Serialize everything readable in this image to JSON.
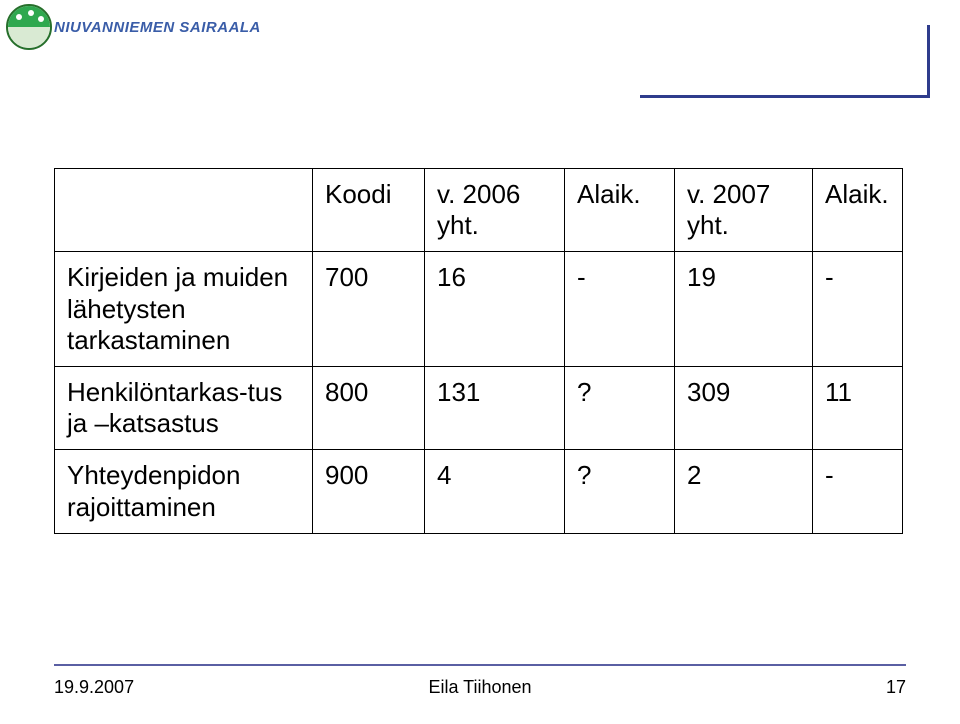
{
  "brand": {
    "name": "NIUVANNIEMEN SAIRAALA"
  },
  "table": {
    "headers": {
      "label": "",
      "koodi": "Koodi",
      "v2006": "v. 2006 yht.",
      "alaik1": "Alaik.",
      "v2007": "v. 2007 yht.",
      "alaik2": "Alaik."
    },
    "rows": [
      {
        "label": "Kirjeiden ja muiden lähetysten tarkastaminen",
        "koodi": "700",
        "v2006": "16",
        "alaik1": "-",
        "v2007": "19",
        "alaik2": "-"
      },
      {
        "label": "Henkilöntarkas-tus ja –katsastus",
        "koodi": "800",
        "v2006": "131",
        "alaik1": "?",
        "v2007": "309",
        "alaik2": "11"
      },
      {
        "label": "Yhteydenpidon rajoittaminen",
        "koodi": "900",
        "v2006": "4",
        "alaik1": "?",
        "v2007": "2",
        "alaik2": "-"
      }
    ]
  },
  "footer": {
    "date": "19.9.2007",
    "author": "Eila Tiihonen",
    "page": "17"
  },
  "colors": {
    "rule": "#2f3c8c",
    "logo_text": "#3a5da8",
    "logo_green": "#2fa84f"
  }
}
